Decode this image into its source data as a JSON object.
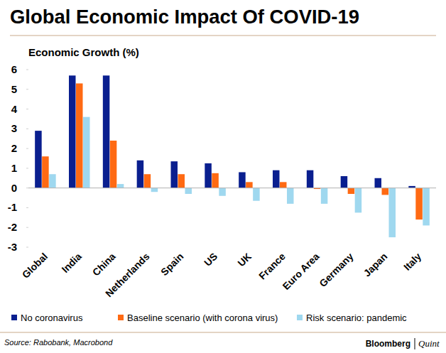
{
  "chart_data": {
    "type": "bar",
    "title": "Global Economic Impact Of COVID-19",
    "subtitle": "Economic Growth (%)",
    "annotations": [
      "Source: Rabobank, Macrobond",
      "Bloomberg",
      "Quint"
    ],
    "categories": [
      "Global",
      "India",
      "China",
      "Netherlands",
      "Spain",
      "US",
      "UK",
      "France",
      "Euro Area",
      "Germany",
      "Japan",
      "Italy"
    ],
    "series": [
      {
        "name": "No coronavirus",
        "color": "#0a1f8f",
        "values": [
          2.9,
          5.7,
          5.7,
          1.4,
          1.35,
          1.25,
          0.8,
          0.9,
          0.9,
          0.6,
          0.5,
          0.1
        ]
      },
      {
        "name": "Baseline scenario (with corona virus)",
        "color": "#ff6a13",
        "values": [
          1.6,
          5.3,
          2.4,
          0.7,
          0.7,
          0.75,
          0.3,
          0.3,
          -0.05,
          -0.3,
          -0.35,
          -1.6
        ]
      },
      {
        "name": "Risk scenario: pandemic",
        "color": "#9fd8ef",
        "values": [
          0.7,
          3.6,
          0.2,
          -0.2,
          -0.3,
          -0.4,
          -0.65,
          -0.8,
          -0.8,
          -1.25,
          -2.5,
          -1.9
        ]
      }
    ],
    "ylim": [
      -3,
      6
    ],
    "yticks": [
      -3,
      -2,
      -1,
      0,
      1,
      2,
      3,
      4,
      5,
      6
    ],
    "grid": false,
    "legend": "bottom",
    "data_labels": false
  }
}
